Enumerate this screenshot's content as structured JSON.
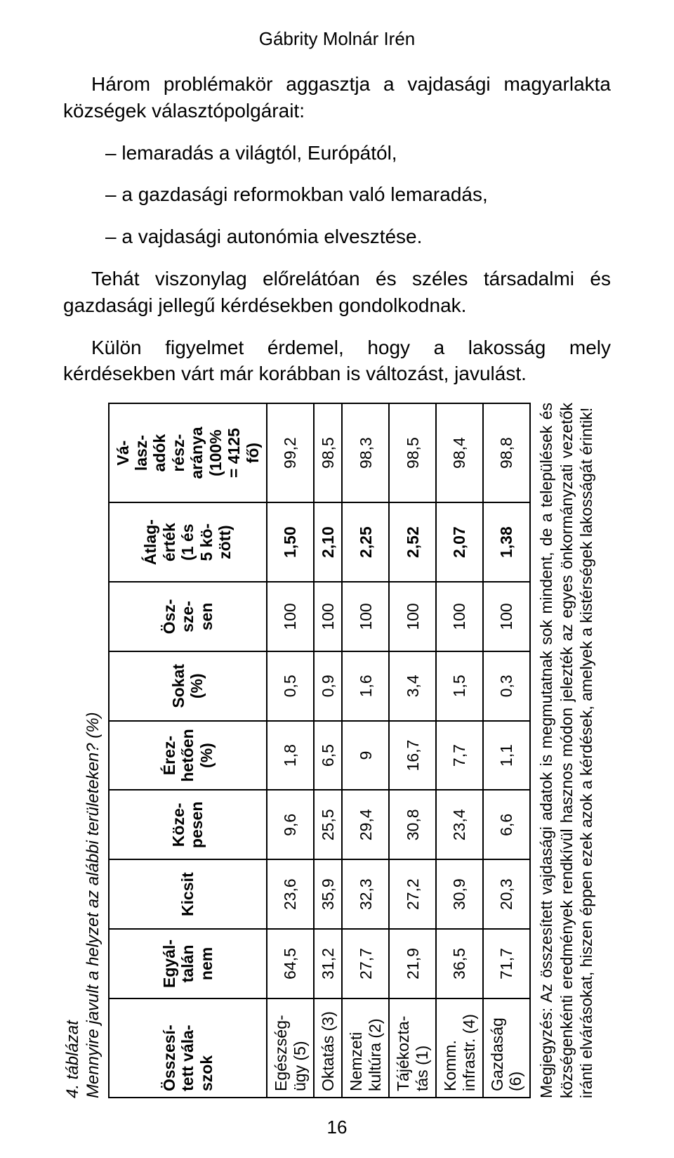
{
  "running_head": "Gábrity Molnár Irén",
  "para1_lead": "Három problémakör aggasztja a vajdasági magyarlakta községek választópolgárait:",
  "bullets": [
    "– lemaradás a világtól, Európától,",
    "– a gazdasági reformokban való lemaradás,",
    "– a vajdasági autonómia elvesztése."
  ],
  "para1_tail": "Tehát viszonylag előrelátóan és széles társadalmi és gazdasági jellegű kérdésekben gondolkodnak.",
  "para2": "Külön figyelmet érdemel, hogy a lakosság mely kérdésekben várt már korábban is változást, javulást.",
  "table_caption_a": "4. táblázat",
  "table_caption_b": "Mennyire javult a helyzet az alábbi területeken? (%)",
  "columns": {
    "stub": "Összesí-\ntett vála-\nszok",
    "c1": "Egyál-\ntalán\nnem",
    "c2": "Kicsit",
    "c3": "Köze-\npesen",
    "c4": "Érez-\nhetően\n(%)",
    "c5": "Sokat\n(%)",
    "c6": "Ösz-\nsze-\nsen",
    "c7": "Átlag-\nérték\n(1 és\n5 kö-\nzött)",
    "c8": "Vá-\nlasz-\nadók\nrész-\naránya\n(100%\n= 4125\nfő)"
  },
  "rows": [
    {
      "label": "Egészség-\nügy (5)",
      "v": [
        "64,5",
        "23,6",
        "9,6",
        "1,8",
        "0,5",
        "100",
        "1,50",
        "99,2"
      ]
    },
    {
      "label": "Oktatás (3)",
      "v": [
        "31,2",
        "35,9",
        "25,5",
        "6,5",
        "0,9",
        "100",
        "2,10",
        "98,5"
      ]
    },
    {
      "label": "Nemzeti\nkultúra (2)",
      "v": [
        "27,7",
        "32,3",
        "29,4",
        "9",
        "1,6",
        "100",
        "2,25",
        "98,3"
      ]
    },
    {
      "label": "Tájékozta-\ntás (1)",
      "v": [
        "21,9",
        "27,2",
        "30,8",
        "16,7",
        "3,4",
        "100",
        "2,52",
        "98,5"
      ]
    },
    {
      "label": "Komm.\ninfrastr. (4)",
      "v": [
        "36,5",
        "30,9",
        "23,4",
        "7,7",
        "1,5",
        "100",
        "2,07",
        "98,4"
      ]
    },
    {
      "label": "Gazdaság\n(6)",
      "v": [
        "71,7",
        "20,3",
        "6,6",
        "1,1",
        "0,3",
        "100",
        "1,38",
        "98,8"
      ]
    }
  ],
  "table_note": "Megjegyzés: Az összesített vajdasági adatok is megmutatnak sok mindent, de a települések és községenkénti eredmények rendkívül hasznos módon jelezték az egyes önkormányzati vezetők iránti elvárásokat, hiszen éppen ezek azok a kérdések, amelyek a kistérségek lakosságát érintik!",
  "page_number": "16"
}
